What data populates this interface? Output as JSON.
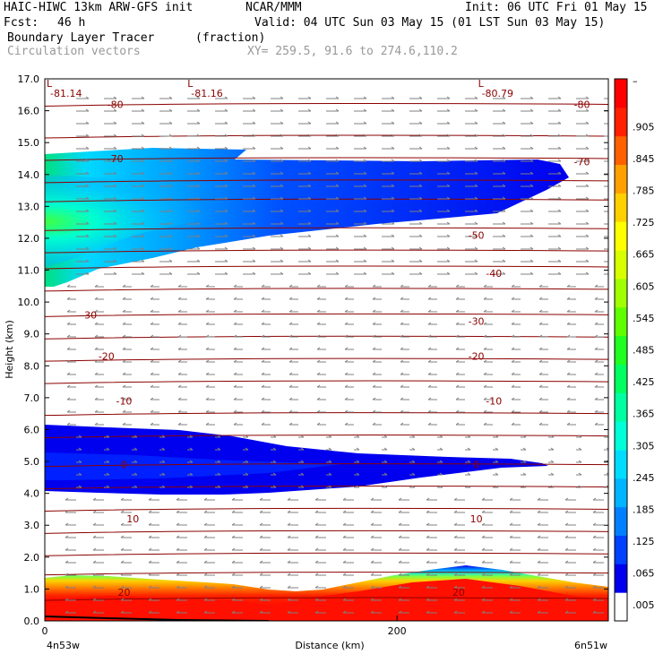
{
  "header": {
    "model": "HAIC-HIWC 13km ARW-GFS init",
    "org": "NCAR/MMM",
    "init": "Init: 06 UTC Fri 01 May 15",
    "fcst_label": "Fcst:",
    "fcst_value": "46 h",
    "valid": "Valid: 04 UTC Sun 03 May 15 (01 LST Sun 03 May 15)",
    "field": "Boundary Layer Tracer",
    "field_units": "(fraction)",
    "vectors": "Circulation vectors",
    "xy": "XY= 259.5, 91.6 to 274.6,110.2"
  },
  "colors": {
    "isotherm": "#8b0000",
    "vector": "#808080",
    "ground": "#000000"
  },
  "chart_data": {
    "type": "heatmap",
    "ylabel": "Height (km)",
    "xlabel": "Distance (km)",
    "ylim": [
      0,
      17
    ],
    "xlim": [
      0,
      320
    ],
    "y_ticks": [
      "0.0",
      "1.0",
      "2.0",
      "3.0",
      "4.0",
      "5.0",
      "6.0",
      "7.0",
      "8.0",
      "9.0",
      "10.0",
      "11.0",
      "12.0",
      "13.0",
      "14.0",
      "15.0",
      "16.0",
      "17.0"
    ],
    "x_tick_values": [
      0,
      200
    ],
    "x_tick_labels": [
      "0",
      "200"
    ],
    "x_left_label": "4n53w",
    "x_right_label": "6n51w",
    "colorbar_labels": [
      ".005",
      ".065",
      ".125",
      ".185",
      ".245",
      ".305",
      ".365",
      ".425",
      ".485",
      ".545",
      ".605",
      ".665",
      ".725",
      ".785",
      ".845",
      ".905"
    ],
    "colorbar_top_label": "–",
    "colorbar_colors": [
      "#ffffff",
      "#0000ee",
      "#0040ff",
      "#0080ff",
      "#00b4ff",
      "#00dcff",
      "#00ffd8",
      "#00ffa0",
      "#00ff60",
      "#20ff20",
      "#60ff00",
      "#a0ff00",
      "#d8ff00",
      "#ffff00",
      "#ffd000",
      "#ffa000",
      "#ff6000",
      "#ff2000",
      "#ff0000"
    ],
    "pressure_lows": [
      {
        "label": "L",
        "value": "-81.14",
        "x": 0
      },
      {
        "label": "L",
        "value": "-81.16",
        "x": 80
      },
      {
        "label": "L",
        "value": "-80.79",
        "x": 245
      }
    ],
    "isotherm_labels": [
      {
        "value": "-80",
        "x": 40,
        "y": 16.2
      },
      {
        "value": "-80",
        "x": 305,
        "y": 16.2
      },
      {
        "value": "-70",
        "x": 40,
        "y": 14.5
      },
      {
        "value": "-70",
        "x": 305,
        "y": 14.4
      },
      {
        "value": "-50",
        "x": 245,
        "y": 12.1
      },
      {
        "value": "-40",
        "x": 255,
        "y": 10.9
      },
      {
        "value": "-30",
        "x": 25,
        "y": 9.6
      },
      {
        "value": "-30",
        "x": 245,
        "y": 9.4
      },
      {
        "value": "-20",
        "x": 35,
        "y": 8.3
      },
      {
        "value": "-20",
        "x": 245,
        "y": 8.3
      },
      {
        "value": "-10",
        "x": 45,
        "y": 6.9
      },
      {
        "value": "-10",
        "x": 255,
        "y": 6.9
      },
      {
        "value": "0",
        "x": 45,
        "y": 4.9
      },
      {
        "value": "0",
        "x": 245,
        "y": 4.9
      },
      {
        "value": "10",
        "x": 50,
        "y": 3.2
      },
      {
        "value": "10",
        "x": 245,
        "y": 3.2
      },
      {
        "value": "20",
        "x": 45,
        "y": 0.9
      },
      {
        "value": "20",
        "x": 235,
        "y": 0.9
      }
    ]
  }
}
